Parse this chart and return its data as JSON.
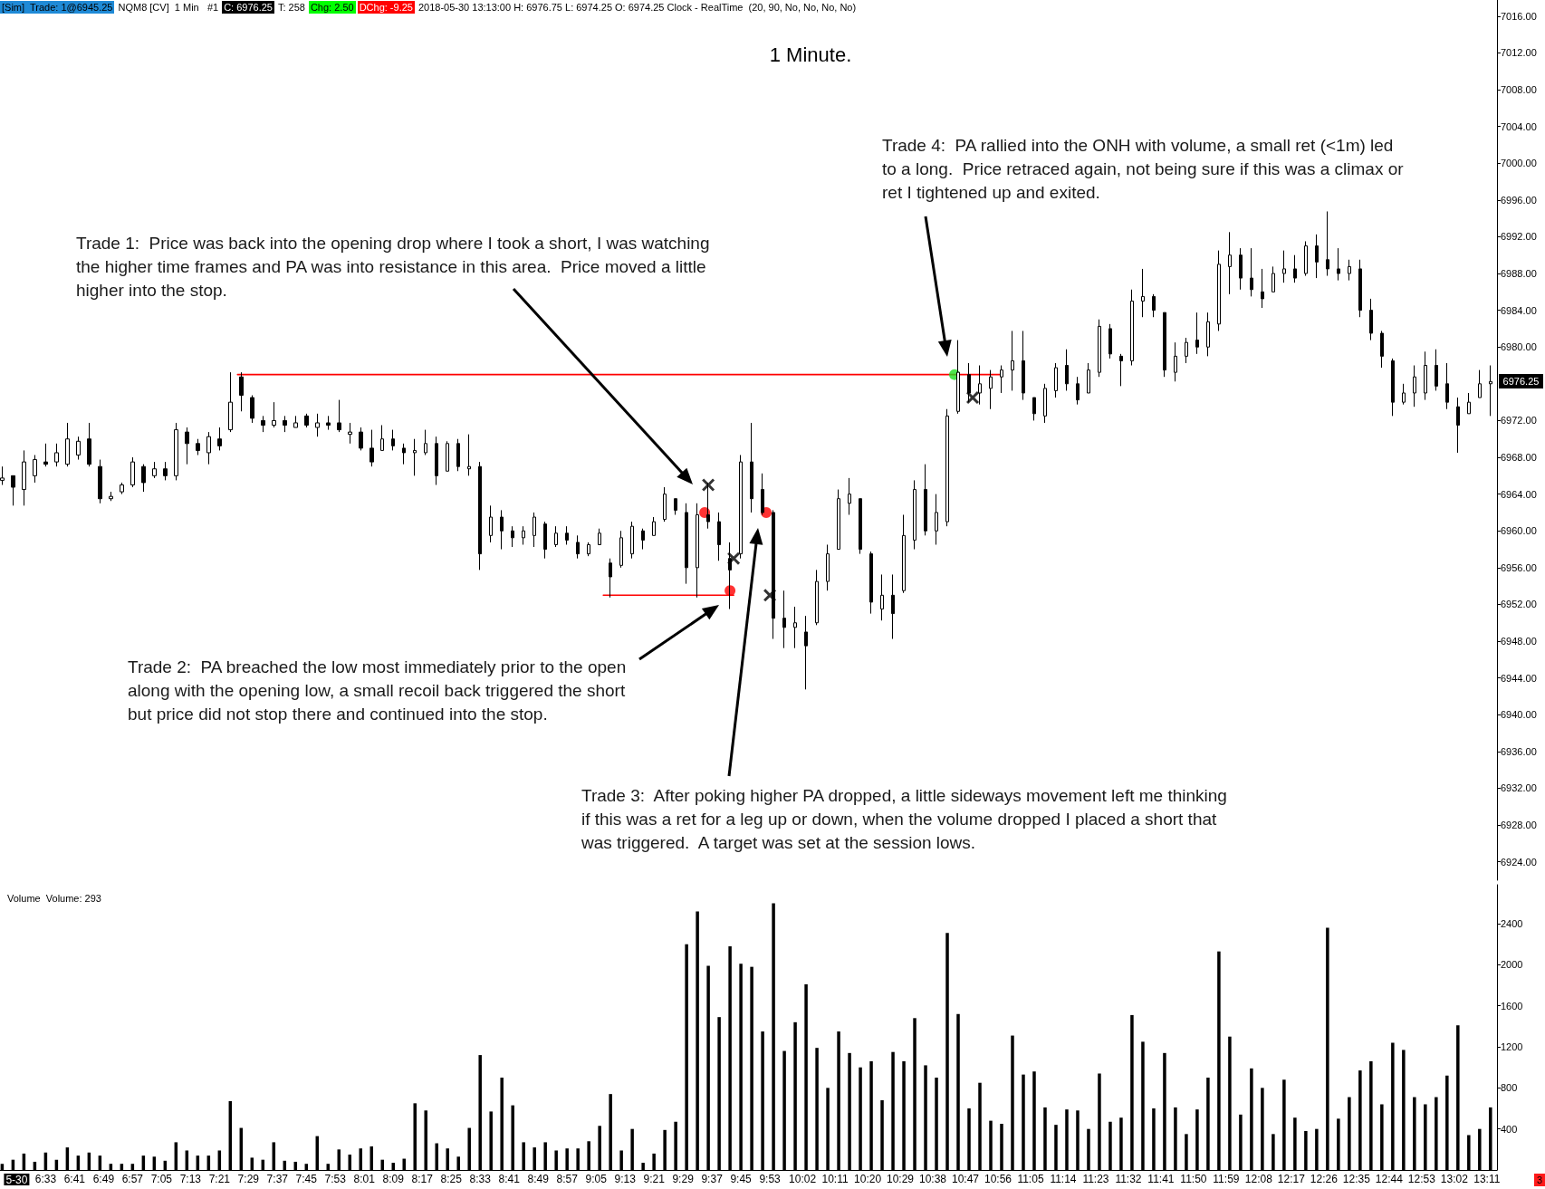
{
  "chart_data": [
    {
      "type": "candlestick",
      "title": "1 Minute.",
      "x": [
        6.35,
        6.4,
        6.45,
        6.5,
        6.55,
        6.6,
        6.65,
        6.7,
        6.75,
        6.8,
        6.85,
        6.9,
        6.95,
        7,
        7.05,
        7.1,
        7.15,
        7.2,
        7.25,
        7.3,
        7.35,
        7.4,
        7.45,
        7.5,
        7.55,
        7.6,
        7.65,
        7.7,
        7.75,
        7.8,
        7.85,
        7.9,
        7.95,
        8,
        8.05,
        8.1,
        8.15,
        8.2,
        8.25,
        8.3,
        8.35,
        8.4,
        8.45,
        8.5,
        8.55,
        8.6,
        8.65,
        8.7,
        8.75,
        8.8,
        8.85,
        8.9,
        8.95,
        9,
        9.05,
        9.1,
        9.15,
        9.2,
        9.25,
        9.3,
        9.35,
        9.4,
        9.45,
        9.5,
        9.55,
        9.6,
        9.65,
        9.7,
        9.75,
        9.8,
        9.85,
        9.9,
        9.95,
        10,
        10.05,
        10.1,
        10.15,
        10.2,
        10.25,
        10.3,
        10.35,
        10.4,
        10.45,
        10.5,
        10.55,
        10.6,
        10.65,
        10.7,
        10.75,
        10.8,
        10.85,
        10.9,
        10.95,
        11,
        11.05,
        11.1,
        11.15,
        11.2,
        11.25,
        11.3,
        11.35,
        11.4,
        11.45,
        11.5,
        11.55,
        11.6,
        11.65,
        11.7,
        11.75,
        11.8,
        11.85,
        11.9,
        11.95,
        12,
        12.05,
        12.1,
        12.15,
        12.2,
        12.25,
        12.3,
        12.35,
        12.4,
        12.45,
        12.5,
        12.55,
        12.6,
        12.65,
        12.7,
        12.75,
        12.8,
        12.85,
        12.9,
        12.95,
        13,
        13.05,
        13.1,
        13.15,
        13.2
      ],
      "ohlc": [
        [
          6965.5,
          6967,
          6965,
          6965.75
        ],
        [
          6966,
          6966,
          6962.75,
          6964.75
        ],
        [
          6964.5,
          6968.75,
          6962.75,
          6967.5
        ],
        [
          6966,
          6968.25,
          6965.25,
          6967.75
        ],
        [
          6967.5,
          6969.5,
          6967,
          6967.25
        ],
        [
          6967.5,
          6969.5,
          6967,
          6968.5
        ],
        [
          6967.25,
          6971.75,
          6967,
          6970
        ],
        [
          6968.25,
          6970.25,
          6967.75,
          6969.75
        ],
        [
          6970,
          6971.75,
          6967,
          6967.25
        ],
        [
          6967,
          6967.75,
          6963,
          6963.5
        ],
        [
          6963.5,
          6964.25,
          6963.25,
          6963.75
        ],
        [
          6964.25,
          6965.25,
          6964,
          6965
        ],
        [
          6965,
          6968,
          6964.75,
          6967.5
        ],
        [
          6967,
          6967.25,
          6964.25,
          6965.25
        ],
        [
          6966,
          6967.5,
          6965.75,
          6966.75
        ],
        [
          6966.75,
          6967.5,
          6965.5,
          6966
        ],
        [
          6966,
          6971.75,
          6965.5,
          6971
        ],
        [
          6970.75,
          6971.25,
          6967.25,
          6969.5
        ],
        [
          6969.5,
          6970,
          6968.25,
          6968.75
        ],
        [
          6968.5,
          6970.75,
          6967.25,
          6970.25
        ],
        [
          6970,
          6971.25,
          6968.75,
          6969.25
        ],
        [
          6971,
          6977.25,
          6970.75,
          6974
        ],
        [
          6976.75,
          6977.25,
          6973,
          6974.75
        ],
        [
          6974.5,
          6974.75,
          6971.75,
          6972.25
        ],
        [
          6972,
          6972.5,
          6970.75,
          6971.5
        ],
        [
          6971.5,
          6974,
          6971.25,
          6972
        ],
        [
          6972,
          6972.5,
          6970.75,
          6971.5
        ],
        [
          6971.25,
          6972.5,
          6971.25,
          6971.75
        ],
        [
          6972.5,
          6972.75,
          6971.25,
          6971.5
        ],
        [
          6971.25,
          6972.75,
          6970.25,
          6971.75
        ],
        [
          6971.75,
          6972.5,
          6971,
          6971.5
        ],
        [
          6971.75,
          6974.25,
          6970.75,
          6971
        ],
        [
          6970.5,
          6971.75,
          6969.5,
          6970.75
        ],
        [
          6970.75,
          6971.25,
          6968.75,
          6969
        ],
        [
          6969,
          6971,
          6967,
          6967.5
        ],
        [
          6968.75,
          6971.5,
          6968.75,
          6970
        ],
        [
          6970,
          6971,
          6968.75,
          6969.25
        ],
        [
          6969,
          6969.5,
          6967.25,
          6968.5
        ],
        [
          6968.5,
          6970,
          6966,
          6968.75
        ],
        [
          6968.5,
          6971,
          6968.25,
          6969.5
        ],
        [
          6969.5,
          6970.25,
          6965,
          6966
        ],
        [
          6966.5,
          6969.75,
          6966.5,
          6969.5
        ],
        [
          6969.5,
          6970,
          6966.5,
          6967
        ],
        [
          6966.75,
          6970.5,
          6966,
          6967
        ],
        [
          6967,
          6967.5,
          6955.75,
          6957.5
        ],
        [
          6959.5,
          6962.75,
          6958.75,
          6961.5
        ],
        [
          6961.5,
          6962.25,
          6958,
          6960
        ],
        [
          6960,
          6960.5,
          6958.25,
          6959.25
        ],
        [
          6959.25,
          6960.5,
          6958.5,
          6960
        ],
        [
          6959.5,
          6962,
          6958.25,
          6961.5
        ],
        [
          6960.75,
          6961,
          6957,
          6958
        ],
        [
          6958.5,
          6960.5,
          6958.25,
          6959.75
        ],
        [
          6959.75,
          6960.5,
          6958.5,
          6959
        ],
        [
          6958.75,
          6959.5,
          6957,
          6957.5
        ],
        [
          6957.5,
          6958.75,
          6957.25,
          6958.5
        ],
        [
          6958.5,
          6960.25,
          6958.5,
          6959.75
        ],
        [
          6956.5,
          6957,
          6952.75,
          6955
        ],
        [
          6956.25,
          6960,
          6956,
          6959.25
        ],
        [
          6957.5,
          6961,
          6957,
          6960.5
        ],
        [
          6960,
          6960.25,
          6958,
          6959
        ],
        [
          6959.5,
          6961.5,
          6959.5,
          6961
        ],
        [
          6961.25,
          6964.75,
          6961,
          6964
        ],
        [
          6963.5,
          6963.5,
          6961.75,
          6962.25
        ],
        [
          6962,
          6963,
          6954.25,
          6956
        ],
        [
          6956,
          6963,
          6952.75,
          6961.75
        ],
        [
          6961.75,
          6965.25,
          6960.25,
          6961
        ],
        [
          6961,
          6962,
          6956.75,
          6958.5
        ],
        [
          6957,
          6958.75,
          6951.5,
          6955.75
        ],
        [
          6957.5,
          6968.25,
          6957,
          6967.5
        ],
        [
          6967.5,
          6971.75,
          6962,
          6963.5
        ],
        [
          6964.5,
          6966.25,
          6961.75,
          6962
        ],
        [
          6962,
          6962.25,
          6948.25,
          6950.5
        ],
        [
          6950.5,
          6953.5,
          6947.25,
          6949.5
        ],
        [
          6949.5,
          6951.75,
          6947.25,
          6950
        ],
        [
          6949,
          6950.75,
          6942.75,
          6947.5
        ],
        [
          6950,
          6955.75,
          6949.75,
          6954.5
        ],
        [
          6954.5,
          6958.5,
          6953.5,
          6957.5
        ],
        [
          6958,
          6964.5,
          6958,
          6963.5
        ],
        [
          6963,
          6965.75,
          6961.75,
          6964
        ],
        [
          6963.5,
          6963.5,
          6957.5,
          6958
        ],
        [
          6957.5,
          6957.75,
          6951,
          6952.25
        ],
        [
          6951.5,
          6955.25,
          6950.25,
          6953
        ],
        [
          6953,
          6955.25,
          6948.25,
          6951
        ],
        [
          6953.5,
          6961.75,
          6953.25,
          6959.5
        ],
        [
          6959,
          6965.5,
          6958,
          6964.5
        ],
        [
          6964.5,
          6967.25,
          6959.5,
          6960
        ],
        [
          6960,
          6964,
          6958.5,
          6962
        ],
        [
          6961,
          6973.25,
          6960.5,
          6972.5
        ],
        [
          6973,
          6980.75,
          6972.75,
          6977.25
        ],
        [
          6977,
          6978.25,
          6974,
          6975
        ],
        [
          6975,
          6978,
          6973.75,
          6976
        ],
        [
          6975.5,
          6977.5,
          6973.25,
          6976.75
        ],
        [
          6976.75,
          6978,
          6975,
          6977.5
        ],
        [
          6977.5,
          6981.75,
          6975.25,
          6978.5
        ],
        [
          6978.5,
          6981.75,
          6974.25,
          6975
        ],
        [
          6974.5,
          6974.5,
          6972,
          6972.75
        ],
        [
          6972.5,
          6976,
          6971.75,
          6975.5
        ],
        [
          6975.25,
          6978.25,
          6974.5,
          6977.75
        ],
        [
          6978,
          6979.75,
          6975.25,
          6976
        ],
        [
          6976,
          6976.75,
          6973.75,
          6974.25
        ],
        [
          6975,
          6978.25,
          6975,
          6977.5
        ],
        [
          6977.25,
          6983,
          6976.75,
          6982.25
        ],
        [
          6982,
          6982.5,
          6978.75,
          6979.25
        ],
        [
          6979,
          6979.25,
          6975.75,
          6978.5
        ],
        [
          6978.5,
          6986.25,
          6978,
          6985
        ],
        [
          6985,
          6988.5,
          6983.25,
          6985.5
        ],
        [
          6985.5,
          6985.75,
          6983.25,
          6984
        ],
        [
          6983.75,
          6983.75,
          6976.75,
          6977.5
        ],
        [
          6977.25,
          6980.5,
          6976.25,
          6979
        ],
        [
          6979,
          6981,
          6978.25,
          6980.5
        ],
        [
          6980.75,
          6983.75,
          6979.25,
          6980
        ],
        [
          6980,
          6983.75,
          6979,
          6982.75
        ],
        [
          6982.5,
          6990.5,
          6981.75,
          6989
        ],
        [
          6988.75,
          6992.5,
          6985.75,
          6990
        ],
        [
          6990,
          6990.75,
          6986.25,
          6987.5
        ],
        [
          6987.5,
          6990.75,
          6985.5,
          6986.25
        ],
        [
          6986,
          6988.5,
          6984.25,
          6985.25
        ],
        [
          6986,
          6988.75,
          6986,
          6988
        ],
        [
          6988,
          6990.5,
          6987,
          6988.5
        ],
        [
          6988.5,
          6990,
          6987,
          6987.5
        ],
        [
          6988,
          6991.5,
          6987.75,
          6991
        ],
        [
          6991,
          6992.25,
          6987.5,
          6989.25
        ],
        [
          6989.5,
          6994.75,
          6987.75,
          6988.5
        ],
        [
          6988.5,
          6990.75,
          6987.25,
          6988
        ],
        [
          6988,
          6989.5,
          6987.25,
          6988.75
        ],
        [
          6988.5,
          6989.5,
          6983.25,
          6984
        ],
        [
          6984,
          6985.25,
          6980.75,
          6981.5
        ],
        [
          6981.5,
          6981.75,
          6977.75,
          6979
        ],
        [
          6978.5,
          6978.75,
          6972.5,
          6974
        ],
        [
          6974,
          6976,
          6973.75,
          6975
        ],
        [
          6975,
          6978,
          6973.5,
          6976.75
        ],
        [
          6975,
          6979.5,
          6974.25,
          6978
        ],
        [
          6978,
          6979.75,
          6975.25,
          6975.75
        ],
        [
          6976,
          6978.25,
          6973.25,
          6974
        ],
        [
          6973.5,
          6974.5,
          6968.5,
          6971.5
        ],
        [
          6972.75,
          6975,
          6972.75,
          6974
        ],
        [
          6974.5,
          6977.5,
          6974.5,
          6976
        ],
        [
          6976,
          6978,
          6972.5,
          6976.25
        ]
      ],
      "color": "#000000",
      "series": [
        {
          "type": "line",
          "x": [
            7.4333,
            10.95
          ],
          "values": [
            6977,
            6977
          ],
          "color": "#ff0000"
        },
        {
          "type": "line",
          "x": [
            9.1167,
            9.7167
          ],
          "values": [
            6953,
            6953
          ],
          "color": "#ff0000"
        },
        {
          "type": "scatter",
          "x": [
            9.5833,
            9.7,
            9.8667
          ],
          "values": [
            6962,
            6953.5,
            6962
          ],
          "color": "#ff0000",
          "marker": "circle"
        },
        {
          "type": "scatter",
          "x": [
            10.7333
          ],
          "values": [
            6977
          ],
          "color": "#22dd22",
          "marker": "circle"
        },
        {
          "type": "scatter",
          "x": [
            9.6,
            9.7167,
            9.8833,
            10.8167
          ],
          "values": [
            6965,
            6957,
            6953,
            6974.5
          ],
          "color": "#000000",
          "marker": "cross"
        }
      ],
      "xlim": [
        6.34,
        13.23
      ],
      "ylim": [
        6922,
        7017.75
      ],
      "yticks": [
        {
          "value": 6924,
          "label": "6924.00"
        },
        {
          "value": 6928,
          "label": "6928.00"
        },
        {
          "value": 6932,
          "label": "6932.00"
        },
        {
          "value": 6936,
          "label": "6936.00"
        },
        {
          "value": 6940,
          "label": "6940.00"
        },
        {
          "value": 6944,
          "label": "6944.00"
        },
        {
          "value": 6948,
          "label": "6948.00"
        },
        {
          "value": 6952,
          "label": "6952.00"
        },
        {
          "value": 6956,
          "label": "6956.00"
        },
        {
          "value": 6960,
          "label": "6960.00"
        },
        {
          "value": 6964,
          "label": "6964.00"
        },
        {
          "value": 6968,
          "label": "6968.00"
        },
        {
          "value": 6972,
          "label": "6972.00"
        },
        {
          "value": 6980,
          "label": "6980.00"
        },
        {
          "value": 6984,
          "label": "6984.00"
        },
        {
          "value": 6988,
          "label": "6988.00"
        },
        {
          "value": 6992,
          "label": "6992.00"
        },
        {
          "value": 6996,
          "label": "6996.00"
        },
        {
          "value": 7000,
          "label": "7000.00"
        },
        {
          "value": 7004,
          "label": "7004.00"
        },
        {
          "value": 7008,
          "label": "7008.00"
        },
        {
          "value": 7012,
          "label": "7012.00"
        },
        {
          "value": 7016,
          "label": "7016.00"
        }
      ],
      "tick_labels": "y",
      "annotations": [
        "[Sim]  Trade: 1@6945.25",
        "NQM8 [CV]  1 Min   #1",
        "C: 6976.25",
        "T: 258",
        "Chg: 2.50",
        "DChg: -9.25",
        "2018-05-30 13:13:00 H: 6976.75 L: 6974.25 O: 6974.25 Clock - RealTime",
        "(20, 90, No, No, No, No)",
        "6976.25",
        "Trade 1:  Price was back into the opening drop where I took a short, I was watching\nthe higher time frames and PA was into resistance in this area.  Price moved a little\nhigher into the stop.",
        "Trade 2:  PA breached the low most immediately prior to the open\nalong with the opening low, a small recoil back triggered the short\nbut price did not stop there and continued into the stop.",
        "Trade 3:  After poking higher PA dropped, a little sideways movement left me thinking\nif this was a ret for a leg up or down, when the volume dropped I placed a short that\nwas triggered.  A target was set at the session lows.",
        "Trade 4:  PA rallied into the ONH with volume, a small ret (<1m) led\nto a long.  Price retraced again, not being sure if this was a climax or\nret I tightened up and exited."
      ]
    },
    {
      "type": "bar",
      "title": "Volume  Volume: 293",
      "x": [
        6.35,
        6.4,
        6.45,
        6.5,
        6.55,
        6.6,
        6.65,
        6.7,
        6.75,
        6.8,
        6.85,
        6.9,
        6.95,
        7,
        7.05,
        7.1,
        7.15,
        7.2,
        7.25,
        7.3,
        7.35,
        7.4,
        7.45,
        7.5,
        7.55,
        7.6,
        7.65,
        7.7,
        7.75,
        7.8,
        7.85,
        7.9,
        7.95,
        8,
        8.05,
        8.1,
        8.15,
        8.2,
        8.25,
        8.3,
        8.35,
        8.4,
        8.45,
        8.5,
        8.55,
        8.6,
        8.65,
        8.7,
        8.75,
        8.8,
        8.85,
        8.9,
        8.95,
        9,
        9.05,
        9.1,
        9.15,
        9.2,
        9.25,
        9.3,
        9.35,
        9.4,
        9.45,
        9.5,
        9.55,
        9.6,
        9.65,
        9.7,
        9.75,
        9.8,
        9.85,
        9.9,
        9.95,
        10,
        10.05,
        10.1,
        10.15,
        10.2,
        10.25,
        10.3,
        10.35,
        10.4,
        10.45,
        10.5,
        10.55,
        10.6,
        10.65,
        10.7,
        10.75,
        10.8,
        10.85,
        10.9,
        10.95,
        11,
        11.05,
        11.1,
        11.15,
        11.2,
        11.25,
        11.3,
        11.35,
        11.4,
        11.45,
        11.5,
        11.55,
        11.6,
        11.65,
        11.7,
        11.75,
        11.8,
        11.85,
        11.9,
        11.95,
        12,
        12.05,
        12.1,
        12.15,
        12.2,
        12.25,
        12.3,
        12.35,
        12.4,
        12.45,
        12.5,
        12.55,
        12.6,
        12.65,
        12.7,
        12.75,
        12.8,
        12.85,
        12.9,
        12.95,
        13,
        13.05,
        13.1,
        13.15,
        13.2
      ],
      "values": [
        60,
        100,
        160,
        80,
        170,
        100,
        220,
        140,
        170,
        140,
        60,
        60,
        60,
        140,
        130,
        90,
        270,
        190,
        140,
        140,
        190,
        670,
        410,
        120,
        100,
        270,
        90,
        80,
        60,
        330,
        60,
        200,
        150,
        210,
        230,
        100,
        70,
        110,
        650,
        580,
        260,
        210,
        130,
        410,
        1120,
        570,
        900,
        630,
        270,
        220,
        270,
        190,
        210,
        210,
        280,
        430,
        740,
        190,
        400,
        70,
        160,
        390,
        470,
        2200,
        2520,
        1990,
        1490,
        2180,
        2010,
        1980,
        1350,
        2600,
        1160,
        1440,
        1810,
        1190,
        800,
        1350,
        1140,
        1000,
        1060,
        680,
        1150,
        1060,
        1480,
        1020,
        900,
        2310,
        1520,
        600,
        850,
        480,
        450,
        1310,
        930,
        960,
        610,
        440,
        590,
        580,
        400,
        940,
        470,
        510,
        1510,
        1250,
        600,
        1140,
        610,
        350,
        590,
        900,
        2130,
        1300,
        540,
        990,
        800,
        350,
        880,
        510,
        380,
        400,
        2360,
        500,
        710,
        970,
        1060,
        640,
        1240,
        1170,
        710,
        640,
        710,
        920,
        1410,
        340,
        400,
        610
      ],
      "color": "#000000",
      "xlim": [
        6.34,
        13.23
      ],
      "xticks": [
        {
          "value": 6.4167,
          "label": "5-30"
        },
        {
          "value": 6.55,
          "label": "6:33"
        },
        {
          "value": 6.6833,
          "label": "6:41"
        },
        {
          "value": 6.8167,
          "label": "6:49"
        },
        {
          "value": 6.95,
          "label": "6:57"
        },
        {
          "value": 7.0833,
          "label": "7:05"
        },
        {
          "value": 7.2167,
          "label": "7:13"
        },
        {
          "value": 7.35,
          "label": "7:21"
        },
        {
          "value": 7.4833,
          "label": "7:29"
        },
        {
          "value": 7.6167,
          "label": "7:37"
        },
        {
          "value": 7.75,
          "label": "7:45"
        },
        {
          "value": 7.8833,
          "label": "7:53"
        },
        {
          "value": 8.0167,
          "label": "8:01"
        },
        {
          "value": 8.15,
          "label": "8:09"
        },
        {
          "value": 8.2833,
          "label": "8:17"
        },
        {
          "value": 8.4167,
          "label": "8:25"
        },
        {
          "value": 8.55,
          "label": "8:33"
        },
        {
          "value": 8.6833,
          "label": "8:41"
        },
        {
          "value": 8.8167,
          "label": "8:49"
        },
        {
          "value": 8.95,
          "label": "8:57"
        },
        {
          "value": 9.0833,
          "label": "9:05"
        },
        {
          "value": 9.2167,
          "label": "9:13"
        },
        {
          "value": 9.35,
          "label": "9:21"
        },
        {
          "value": 9.4833,
          "label": "9:29"
        },
        {
          "value": 9.6167,
          "label": "9:37"
        },
        {
          "value": 9.75,
          "label": "9:45"
        },
        {
          "value": 9.8833,
          "label": "9:53"
        },
        {
          "value": 10.0333,
          "label": "10:02"
        },
        {
          "value": 10.1833,
          "label": "10:11"
        },
        {
          "value": 10.3333,
          "label": "10:20"
        },
        {
          "value": 10.4833,
          "label": "10:29"
        },
        {
          "value": 10.6333,
          "label": "10:38"
        },
        {
          "value": 10.7833,
          "label": "10:47"
        },
        {
          "value": 10.9333,
          "label": "10:56"
        },
        {
          "value": 11.0833,
          "label": "11:05"
        },
        {
          "value": 11.2333,
          "label": "11:14"
        },
        {
          "value": 11.3833,
          "label": "11:23"
        },
        {
          "value": 11.5333,
          "label": "11:32"
        },
        {
          "value": 11.6833,
          "label": "11:41"
        },
        {
          "value": 11.8333,
          "label": "11:50"
        },
        {
          "value": 11.9833,
          "label": "11:59"
        },
        {
          "value": 12.1333,
          "label": "12:08"
        },
        {
          "value": 12.2833,
          "label": "12:17"
        },
        {
          "value": 12.4333,
          "label": "12:26"
        },
        {
          "value": 12.5833,
          "label": "12:35"
        },
        {
          "value": 12.7333,
          "label": "12:44"
        },
        {
          "value": 12.8833,
          "label": "12:53"
        },
        {
          "value": 13.0333,
          "label": "13:02"
        },
        {
          "value": 13.1833,
          "label": "13:11"
        }
      ],
      "ylim": [
        0,
        2780
      ],
      "yticks": [
        400,
        800,
        1200,
        1600,
        2000,
        2400
      ],
      "annotations": [
        "3"
      ]
    }
  ]
}
